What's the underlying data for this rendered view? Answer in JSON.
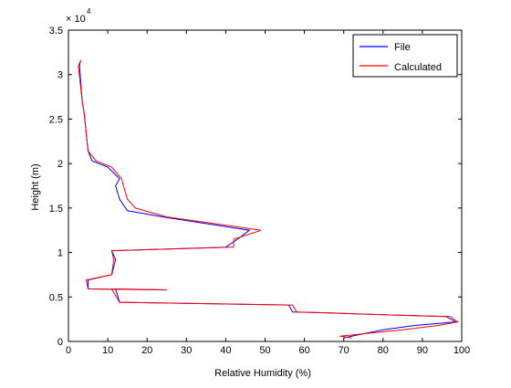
{
  "chart_data": {
    "type": "line",
    "title": "",
    "xlabel": "Relative Humidity (%)",
    "ylabel": "Height (m)",
    "xlim": [
      0,
      100
    ],
    "ylim": [
      0,
      35000
    ],
    "x_ticks": [
      0,
      10,
      20,
      30,
      40,
      50,
      60,
      70,
      80,
      90,
      100
    ],
    "y_ticks": [
      0,
      5000,
      10000,
      15000,
      20000,
      25000,
      30000,
      35000
    ],
    "y_tick_labels": [
      "0",
      "0.5",
      "1",
      "1.5",
      "2",
      "2.5",
      "3",
      "3.5"
    ],
    "y_exponent_label": "× 10",
    "y_exponent_power": "4",
    "grid": false,
    "legend_position": "top-right",
    "series": [
      {
        "name": "File",
        "color": "#0000ff",
        "x": [
          70,
          72,
          80,
          88,
          98.5,
          96,
          80,
          66,
          57,
          56,
          13,
          12,
          25,
          5,
          5,
          11,
          12,
          11,
          40,
          43,
          46,
          24,
          15,
          13,
          12,
          13,
          10,
          6,
          5,
          4,
          3.5,
          2.8,
          3.1
        ],
        "y": [
          400,
          600,
          1300,
          1800,
          2200,
          2800,
          3000,
          3200,
          3300,
          4100,
          4400,
          5900,
          5800,
          5900,
          6900,
          7500,
          9200,
          10200,
          10600,
          11500,
          12500,
          14000,
          14700,
          16000,
          17500,
          18300,
          19600,
          20300,
          21400,
          25700,
          27000,
          31000,
          31600
        ]
      },
      {
        "name": "Calculated",
        "color": "#ff0000",
        "x": [
          72,
          69,
          85,
          94,
          99,
          97,
          80,
          67,
          58,
          57,
          13,
          11,
          25,
          5,
          4.5,
          11,
          11.5,
          11,
          42,
          42,
          49,
          25,
          17,
          15,
          14,
          13.5,
          11,
          7,
          5,
          4,
          3.5,
          2.5,
          3.2
        ],
        "y": [
          400,
          600,
          1300,
          1800,
          2200,
          2800,
          3000,
          3200,
          3300,
          4100,
          4400,
          5900,
          5800,
          5900,
          6900,
          7500,
          9200,
          10200,
          10600,
          11500,
          12500,
          14000,
          15000,
          16000,
          17500,
          18300,
          19600,
          20300,
          21400,
          25700,
          27000,
          31000,
          31600
        ]
      }
    ]
  }
}
